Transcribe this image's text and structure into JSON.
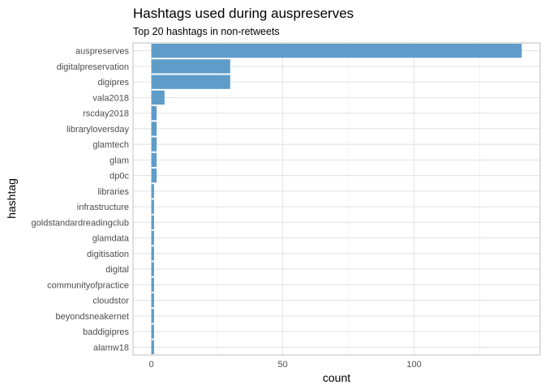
{
  "chart_data": {
    "type": "bar",
    "orientation": "horizontal",
    "title": "Hashtags used during auspreserves",
    "subtitle": "Top 20 hashtags in non-retweets",
    "xlabel": "count",
    "ylabel": "hashtag",
    "categories": [
      "auspreserves",
      "digitalpreservation",
      "digipres",
      "vala2018",
      "rscday2018",
      "libraryloversday",
      "glamtech",
      "glam",
      "dp0c",
      "libraries",
      "infrastructure",
      "goldstandardreadingclub",
      "glamdata",
      "digitisation",
      "digital",
      "communityofpractice",
      "cloudstor",
      "beyondsneakernet",
      "baddigipres",
      "alamw18"
    ],
    "values": [
      141,
      30,
      30,
      5,
      2,
      2,
      2,
      2,
      2,
      1,
      1,
      1,
      1,
      1,
      1,
      1,
      1,
      1,
      1,
      1
    ],
    "x_ticks": [
      0,
      50,
      100
    ],
    "xlim": [
      -7,
      148
    ],
    "bar_color": "#5f9cc9",
    "grid": true,
    "legend": "none"
  }
}
